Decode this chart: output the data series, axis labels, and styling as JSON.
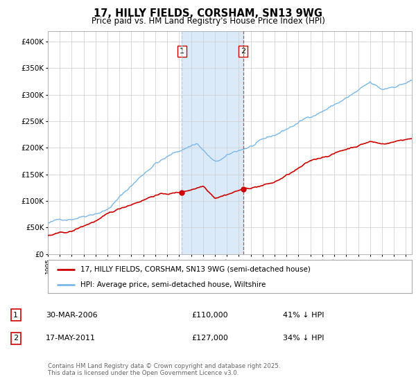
{
  "title": "17, HILLY FIELDS, CORSHAM, SN13 9WG",
  "subtitle": "Price paid vs. HM Land Registry's House Price Index (HPI)",
  "red_label": "17, HILLY FIELDS, CORSHAM, SN13 9WG (semi-detached house)",
  "blue_label": "HPI: Average price, semi-detached house, Wiltshire",
  "legend1_date": "30-MAR-2006",
  "legend1_price": "£110,000",
  "legend1_hpi": "41% ↓ HPI",
  "legend2_date": "17-MAY-2011",
  "legend2_price": "£127,000",
  "legend2_hpi": "34% ↓ HPI",
  "footer": "Contains HM Land Registry data © Crown copyright and database right 2025.\nThis data is licensed under the Open Government Licence v3.0.",
  "sale1_year": 2006.23,
  "sale2_year": 2011.37,
  "sale1_price": 110000,
  "sale2_price": 127000,
  "blue_color": "#7cb8e8",
  "red_color": "#cc0000",
  "shade_color": "#daeaf8",
  "grid_color": "#cccccc",
  "background_color": "#ffffff",
  "ylim": [
    0,
    420000
  ],
  "xlim_start": 1995,
  "xlim_end": 2025.5,
  "vline1_color": "#c0c8e0",
  "vline2_color": "#cc0000"
}
